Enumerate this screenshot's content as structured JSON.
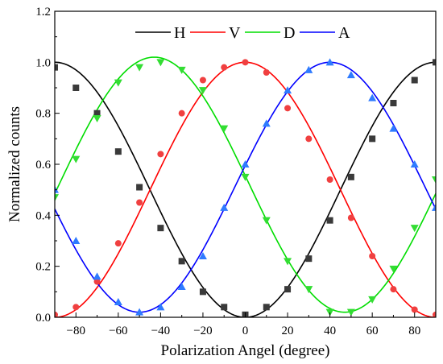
{
  "chart_data": {
    "type": "line",
    "title": "",
    "xlabel": "Polarization Angel (degree)",
    "ylabel": "Normalized counts",
    "xlim": [
      -90,
      90
    ],
    "ylim": [
      0,
      1.2
    ],
    "xticks": [
      -80,
      -60,
      -40,
      -20,
      0,
      20,
      40,
      60,
      80
    ],
    "yticks": [
      0.0,
      0.2,
      0.4,
      0.6,
      0.8,
      1.0,
      1.2
    ],
    "xtick_labels": [
      "−80",
      "−60",
      "−40",
      "−20",
      "0",
      "20",
      "40",
      "60",
      "80"
    ],
    "ytick_labels": [
      "0.0",
      "0.2",
      "0.4",
      "0.6",
      "0.8",
      "1.0",
      "1.2"
    ],
    "grid": false,
    "legend_position": "top-center",
    "x": [
      -90,
      -80,
      -70,
      -60,
      -50,
      -40,
      -30,
      -20,
      -10,
      0,
      10,
      20,
      30,
      40,
      50,
      60,
      70,
      80,
      90
    ],
    "series": [
      {
        "name": "H",
        "color": "#000000",
        "marker": "square",
        "marker_color": "#3a3a3a",
        "fit": {
          "amplitude": 1.0,
          "offset": 0.0,
          "phase_deg": -90
        },
        "values": [
          0.98,
          0.9,
          0.8,
          0.65,
          0.51,
          0.35,
          0.22,
          0.1,
          0.04,
          0.01,
          0.04,
          0.11,
          0.23,
          0.38,
          0.55,
          0.7,
          0.84,
          0.93,
          1.0
        ]
      },
      {
        "name": "V",
        "color": "#ff0000",
        "marker": "circle",
        "marker_color": "#f04040",
        "fit": {
          "amplitude": 1.0,
          "offset": 0.0,
          "phase_deg": 0
        },
        "values": [
          0.01,
          0.04,
          0.14,
          0.29,
          0.45,
          0.64,
          0.8,
          0.93,
          0.98,
          1.0,
          0.96,
          0.82,
          0.7,
          0.54,
          0.39,
          0.24,
          0.11,
          0.03,
          0.01
        ]
      },
      {
        "name": "D",
        "color": "#00dd00",
        "marker": "triangle-down",
        "marker_color": "#33dd33",
        "fit": {
          "amplitude": 1.0,
          "offset": 0.02,
          "phase_deg": -43
        },
        "values": [
          0.47,
          0.62,
          0.78,
          0.92,
          0.98,
          1.0,
          0.97,
          0.89,
          0.74,
          0.55,
          0.38,
          0.22,
          0.11,
          0.02,
          0.02,
          0.07,
          0.19,
          0.35,
          0.54
        ]
      },
      {
        "name": "A",
        "color": "#0000ff",
        "marker": "triangle-up",
        "marker_color": "#2f7bff",
        "fit": {
          "amplitude": 0.98,
          "offset": 0.02,
          "phase_deg": 40
        },
        "values": [
          0.5,
          0.3,
          0.16,
          0.06,
          0.02,
          0.04,
          0.12,
          0.24,
          0.43,
          0.6,
          0.76,
          0.89,
          0.97,
          1.0,
          0.95,
          0.86,
          0.74,
          0.6,
          0.43
        ]
      }
    ]
  }
}
